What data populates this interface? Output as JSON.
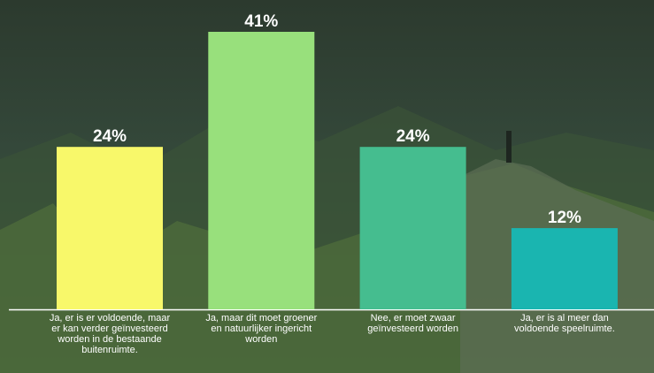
{
  "chart_data": {
    "type": "bar",
    "categories": [
      "Ja, er is er voldoende, maar er kan verder geïnvesteerd worden in de bestaande buitenruimte.",
      "Ja, maar dit moet groener en natuurlijker ingericht worden",
      "Nee, er moet zwaar geïnvesteerd worden",
      "Ja, er is al meer dan voldoende speelruimte."
    ],
    "values": [
      24,
      41,
      24,
      12
    ],
    "value_labels": [
      "24%",
      "41%",
      "24%",
      "12%"
    ],
    "colors": [
      "#f8f86a",
      "#98e07c",
      "#45bd8f",
      "#1ab5b0"
    ]
  }
}
